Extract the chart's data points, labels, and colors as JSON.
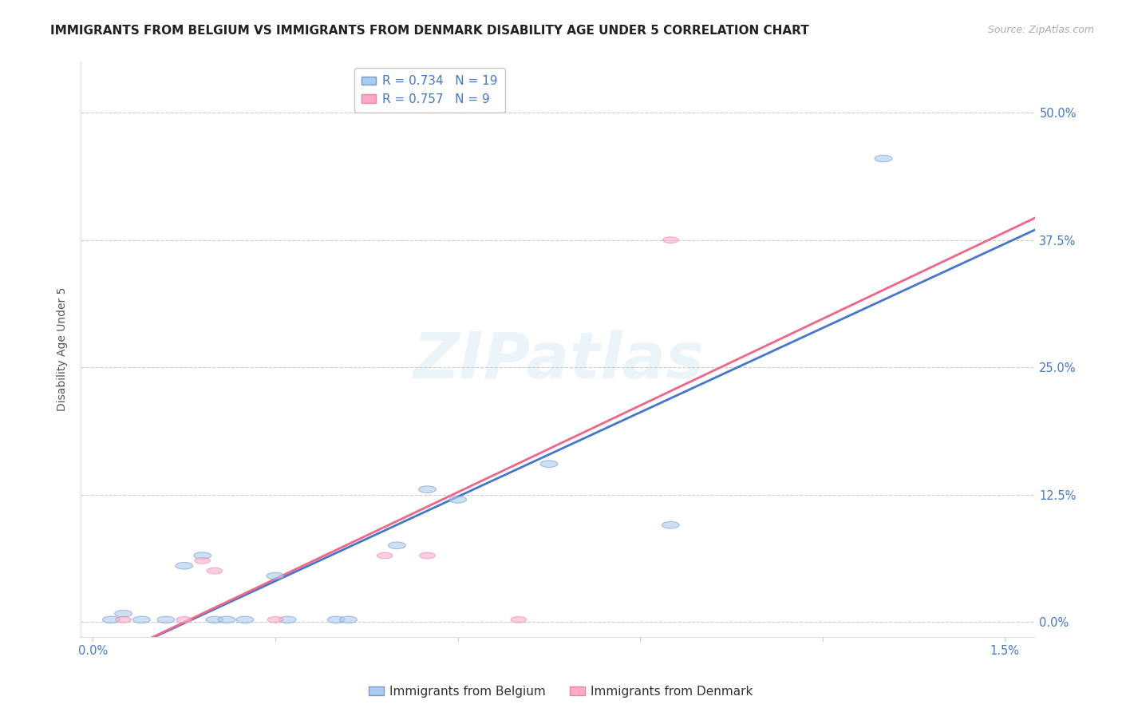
{
  "title": "IMMIGRANTS FROM BELGIUM VS IMMIGRANTS FROM DENMARK DISABILITY AGE UNDER 5 CORRELATION CHART",
  "source": "Source: ZipAtlas.com",
  "ylabel": "Disability Age Under 5",
  "watermark": "ZIPatlas",
  "legend1_R": "0.734",
  "legend1_N": "19",
  "legend2_R": "0.757",
  "legend2_N": " 9",
  "blue_fill": "#AACCEE",
  "blue_edge": "#7799CC",
  "pink_fill": "#FFAACC",
  "pink_edge": "#EE8899",
  "blue_line_color": "#4477CC",
  "pink_line_color": "#EE6688",
  "blue_scatter": [
    [
      0.0003,
      0.002
    ],
    [
      0.0005,
      0.008
    ],
    [
      0.0008,
      0.002
    ],
    [
      0.0012,
      0.002
    ],
    [
      0.0015,
      0.055
    ],
    [
      0.0018,
      0.065
    ],
    [
      0.002,
      0.002
    ],
    [
      0.0022,
      0.002
    ],
    [
      0.0025,
      0.002
    ],
    [
      0.003,
      0.045
    ],
    [
      0.0032,
      0.002
    ],
    [
      0.004,
      0.002
    ],
    [
      0.0042,
      0.002
    ],
    [
      0.005,
      0.075
    ],
    [
      0.0055,
      0.13
    ],
    [
      0.006,
      0.12
    ],
    [
      0.0075,
      0.155
    ],
    [
      0.0095,
      0.095
    ],
    [
      0.013,
      0.455
    ]
  ],
  "pink_scatter": [
    [
      0.0005,
      0.002
    ],
    [
      0.0015,
      0.002
    ],
    [
      0.0018,
      0.06
    ],
    [
      0.002,
      0.05
    ],
    [
      0.003,
      0.002
    ],
    [
      0.0048,
      0.065
    ],
    [
      0.0055,
      0.065
    ],
    [
      0.007,
      0.002
    ],
    [
      0.0095,
      0.375
    ]
  ],
  "ylim": [
    -0.015,
    0.55
  ],
  "xlim": [
    -0.0002,
    0.0155
  ],
  "yticks": [
    0.0,
    0.125,
    0.25,
    0.375,
    0.5
  ],
  "ytick_labels_right": [
    "0.0%",
    "12.5%",
    "25.0%",
    "37.5%",
    "50.0%"
  ],
  "xticks": [
    0.0,
    0.003,
    0.006,
    0.009,
    0.012,
    0.015
  ],
  "xtick_labels": [
    "0.0%",
    "",
    "",
    "",
    "",
    "1.5%"
  ],
  "grid_color": "#CCCCCC",
  "tick_color": "#4477CC",
  "title_fontsize": 11,
  "label_fontsize": 10,
  "tick_fontsize": 10.5
}
